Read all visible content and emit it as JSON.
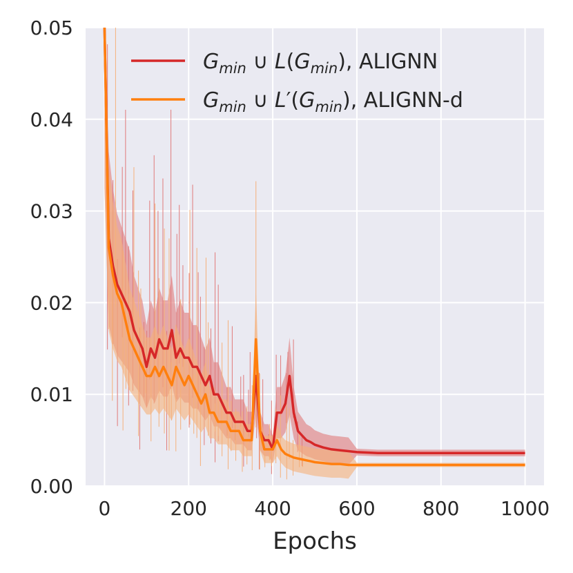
{
  "chart_data": {
    "type": "line",
    "title": "",
    "xlabel": "Epochs",
    "ylabel": "",
    "xlim": [
      -45,
      1045
    ],
    "ylim": [
      0.0,
      0.05
    ],
    "xticks": [
      0,
      200,
      400,
      600,
      800,
      1000
    ],
    "xtick_labels": [
      "0",
      "200",
      "400",
      "600",
      "800",
      "1000"
    ],
    "yticks": [
      0.0,
      0.01,
      0.02,
      0.03,
      0.04,
      0.05
    ],
    "ytick_labels": [
      "0.00",
      "0.01",
      "0.02",
      "0.03",
      "0.04",
      "0.05"
    ],
    "grid": true,
    "background": "#eaeaf2",
    "legend_position": "upper-right",
    "series": [
      {
        "name": "G_min ∪ L(G_min), ALIGNN",
        "color": "#d62728",
        "band_color": "#e07a7a",
        "x": [
          0,
          10,
          20,
          30,
          40,
          50,
          60,
          70,
          80,
          90,
          100,
          110,
          120,
          130,
          140,
          150,
          160,
          170,
          180,
          190,
          200,
          210,
          220,
          230,
          240,
          250,
          260,
          270,
          280,
          290,
          300,
          310,
          320,
          330,
          340,
          350,
          360,
          370,
          380,
          390,
          400,
          410,
          420,
          430,
          440,
          450,
          460,
          470,
          480,
          490,
          500,
          520,
          540,
          560,
          580,
          600,
          650,
          700,
          750,
          800,
          850,
          900,
          950,
          1000
        ],
        "values": [
          0.05,
          0.027,
          0.024,
          0.022,
          0.021,
          0.02,
          0.019,
          0.017,
          0.016,
          0.015,
          0.013,
          0.015,
          0.014,
          0.016,
          0.015,
          0.015,
          0.017,
          0.014,
          0.015,
          0.014,
          0.014,
          0.013,
          0.013,
          0.012,
          0.011,
          0.012,
          0.01,
          0.01,
          0.009,
          0.008,
          0.008,
          0.007,
          0.007,
          0.007,
          0.006,
          0.006,
          0.012,
          0.006,
          0.005,
          0.005,
          0.004,
          0.008,
          0.008,
          0.009,
          0.012,
          0.008,
          0.006,
          0.0055,
          0.005,
          0.0048,
          0.0045,
          0.0042,
          0.004,
          0.0039,
          0.0038,
          0.0037,
          0.0036,
          0.0036,
          0.0036,
          0.0036,
          0.0036,
          0.0036,
          0.0036,
          0.0036
        ]
      },
      {
        "name": "G_min ∪ L′(G_min), ALIGNN-d",
        "color": "#ff7f0e",
        "band_color": "#f5b07a",
        "x": [
          0,
          10,
          20,
          30,
          40,
          50,
          60,
          70,
          80,
          90,
          100,
          110,
          120,
          130,
          140,
          150,
          160,
          170,
          180,
          190,
          200,
          210,
          220,
          230,
          240,
          250,
          260,
          270,
          280,
          290,
          300,
          310,
          320,
          330,
          340,
          350,
          360,
          370,
          380,
          390,
          400,
          410,
          420,
          430,
          440,
          450,
          460,
          470,
          480,
          490,
          500,
          520,
          540,
          560,
          580,
          600,
          650,
          700,
          750,
          800,
          850,
          900,
          950,
          1000
        ],
        "values": [
          0.05,
          0.026,
          0.023,
          0.021,
          0.02,
          0.018,
          0.016,
          0.015,
          0.014,
          0.013,
          0.012,
          0.012,
          0.013,
          0.012,
          0.013,
          0.012,
          0.011,
          0.013,
          0.012,
          0.011,
          0.012,
          0.011,
          0.01,
          0.009,
          0.01,
          0.008,
          0.008,
          0.007,
          0.007,
          0.007,
          0.006,
          0.006,
          0.006,
          0.005,
          0.005,
          0.005,
          0.016,
          0.006,
          0.004,
          0.004,
          0.004,
          0.005,
          0.004,
          0.0035,
          0.0033,
          0.0031,
          0.003,
          0.0029,
          0.0028,
          0.0027,
          0.0026,
          0.0025,
          0.0024,
          0.0024,
          0.0023,
          0.0023,
          0.0023,
          0.0023,
          0.0023,
          0.0023,
          0.0023,
          0.0023,
          0.0023,
          0.0023
        ]
      }
    ],
    "legend": [
      {
        "var": "G",
        "sub": "min",
        "op": " ∪ ",
        "var2": "L",
        "prime": false,
        "open": "(",
        "var3": "G",
        "sub3": "min",
        "close": ")",
        "suffix": ", ALIGNN",
        "color": "#d62728"
      },
      {
        "var": "G",
        "sub": "min",
        "op": " ∪ ",
        "var2": "L",
        "prime": true,
        "open": "(",
        "var3": "G",
        "sub3": "min",
        "close": ")",
        "suffix": ", ALIGNN-d",
        "color": "#ff7f0e"
      }
    ]
  }
}
